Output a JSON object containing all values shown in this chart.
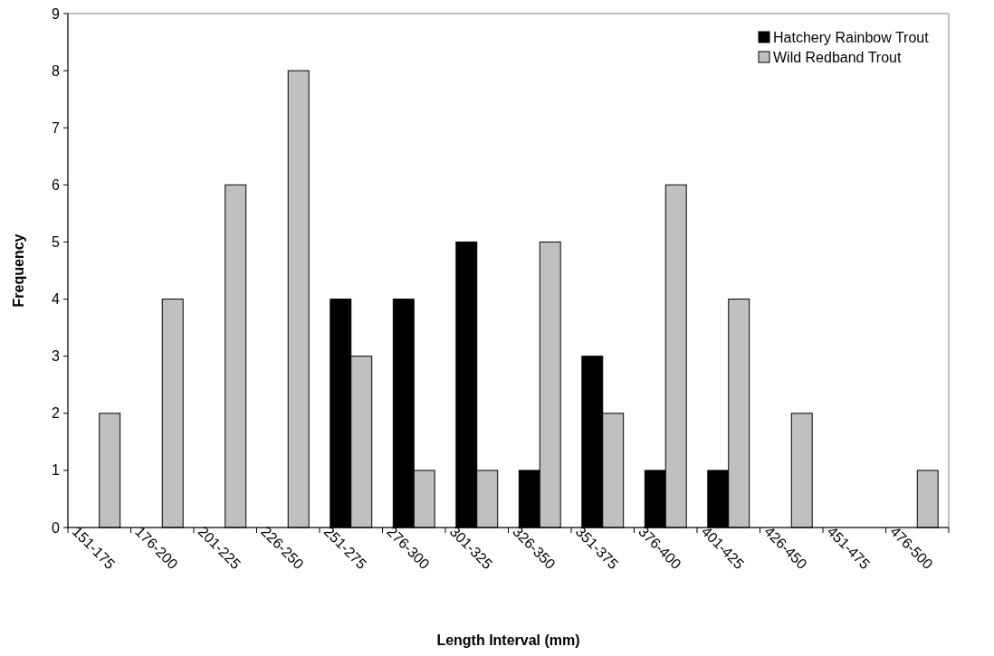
{
  "chart_data": {
    "type": "bar",
    "xlabel": "Length Interval (mm)",
    "ylabel": "Frequency",
    "categories": [
      "151-175",
      "176-200",
      "201-225",
      "226-250",
      "251-275",
      "276-300",
      "301-325",
      "326-350",
      "351-375",
      "376-400",
      "401-425",
      "426-450",
      "451-475",
      "476-500"
    ],
    "series": [
      {
        "name": "Hatchery Rainbow Trout",
        "color": "#000000",
        "values": [
          0,
          0,
          0,
          0,
          4,
          4,
          5,
          1,
          3,
          1,
          1,
          0,
          0,
          0
        ]
      },
      {
        "name": "Wild Redband Trout",
        "color": "#c0c0c0",
        "values": [
          2,
          4,
          6,
          8,
          3,
          1,
          1,
          5,
          2,
          6,
          4,
          2,
          0,
          1
        ]
      }
    ],
    "ylim": [
      0,
      9
    ],
    "yticks": [
      0,
      1,
      2,
      3,
      4,
      5,
      6,
      7,
      8,
      9
    ],
    "grid": false,
    "legend": "top right"
  }
}
